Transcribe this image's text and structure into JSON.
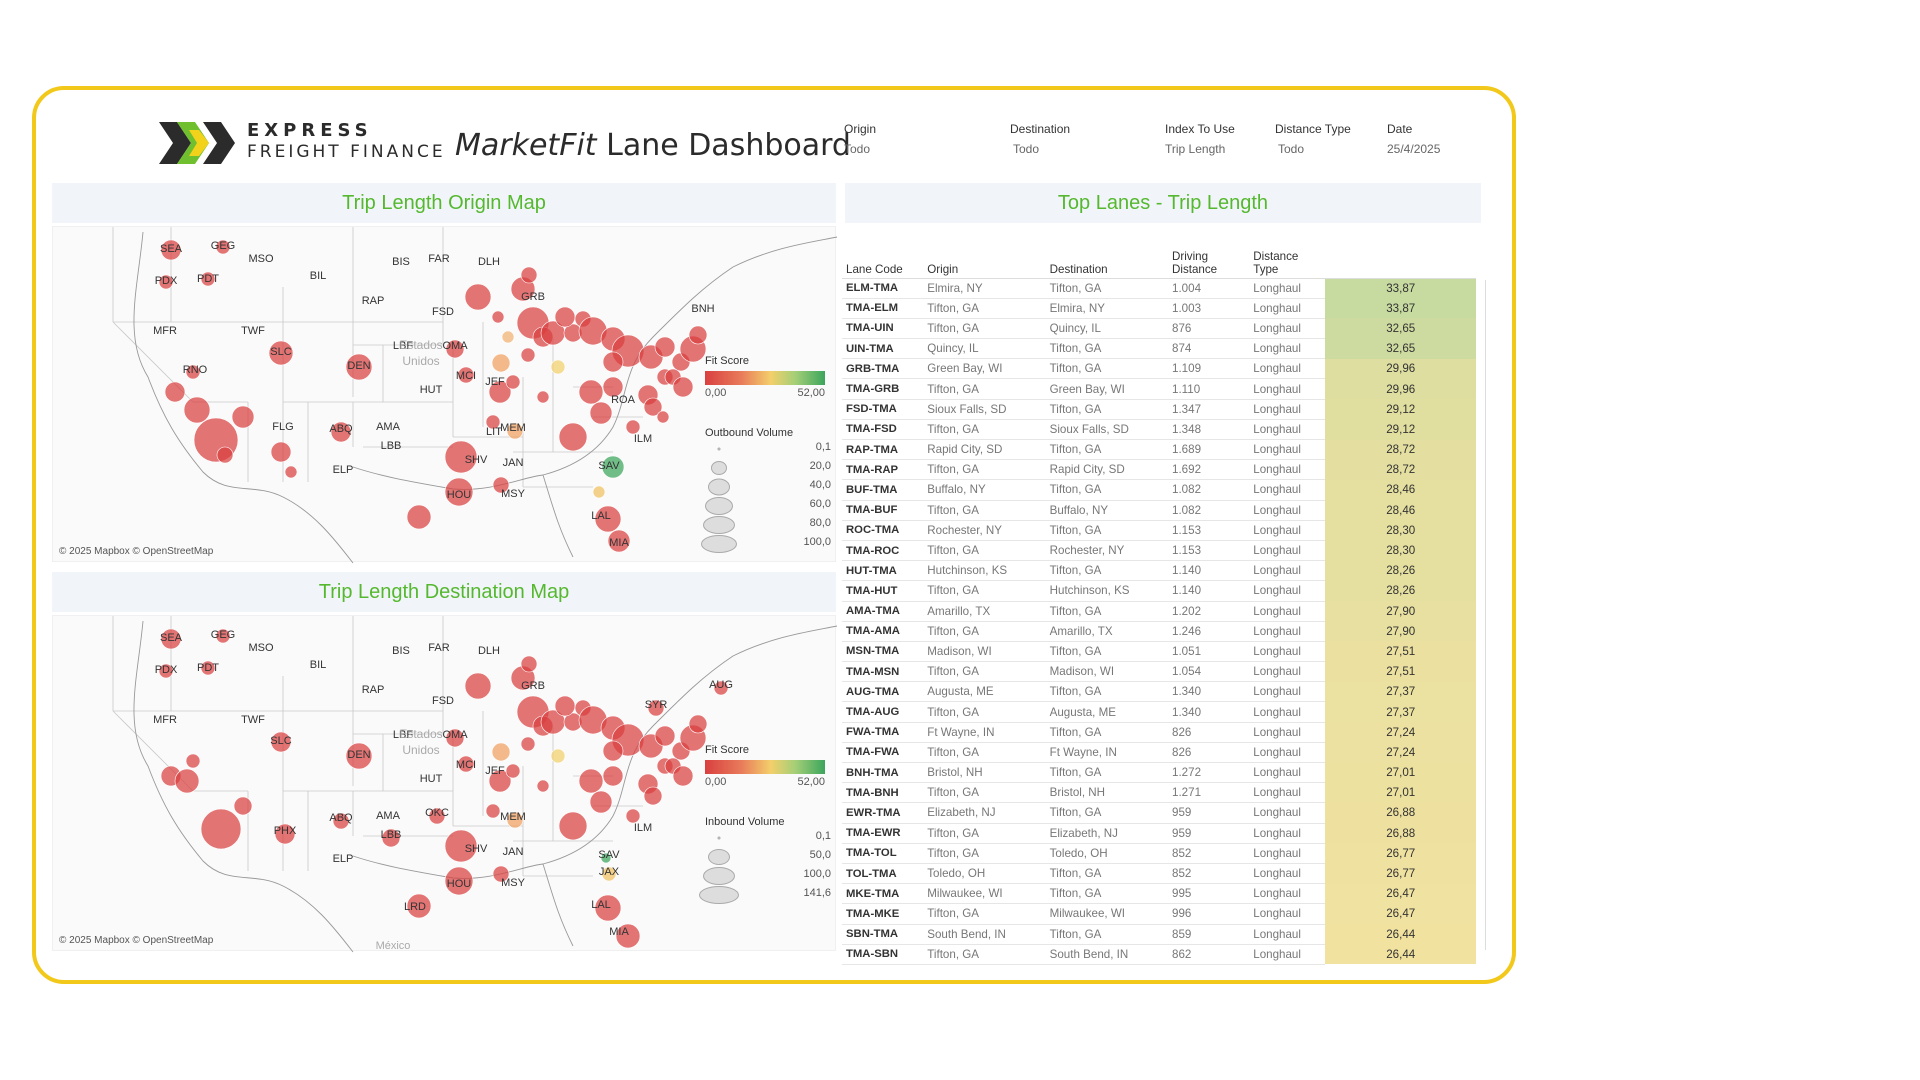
{
  "brand": {
    "line1": "EXPRESS",
    "line2": "FREIGHT FINANCE"
  },
  "title": {
    "marketfit": "MarketFit",
    "rest": " Lane Dashboard"
  },
  "filters": [
    {
      "label": "Origin",
      "value": "Todo"
    },
    {
      "label": "Destination",
      "value": "Todo"
    },
    {
      "label": "Index To Use",
      "value": "Trip Length"
    },
    {
      "label": "Distance Type",
      "value": "Todo"
    },
    {
      "label": "Date",
      "value": "25/4/2025"
    }
  ],
  "panels": {
    "origin_map_title": "Trip Length Origin Map",
    "dest_map_title": "Trip Length Destination Map",
    "table_title": "Top Lanes - Trip Length"
  },
  "maps": {
    "attribution": "© 2025 Mapbox © OpenStreetMap",
    "country_label_1": "Estados",
    "country_label_2": "Unidos",
    "mexico_label": "México",
    "origin_cities": [
      "SEA",
      "GEG",
      "MSO",
      "PDX",
      "PDT",
      "BIL",
      "BIS",
      "FAR",
      "DLH",
      "MFR",
      "TWF",
      "RAP",
      "FSD",
      "GRB",
      "BNH",
      "RNO",
      "SLC",
      "DEN",
      "LBF",
      "OMA",
      "MCI",
      "JEF",
      "HUT",
      "ROA",
      "FLG",
      "ABQ",
      "AMA",
      "LBB",
      "LIT",
      "MEM",
      "ILM",
      "ELP",
      "SHV",
      "JAN",
      "SAV",
      "HOU",
      "MSY",
      "LAL",
      "MIA"
    ],
    "dest_cities": [
      "SEA",
      "GEG",
      "MSO",
      "PDX",
      "PDT",
      "BIL",
      "BIS",
      "FAR",
      "DLH",
      "AUG",
      "MFR",
      "TWF",
      "RAP",
      "FSD",
      "GRB",
      "SYR",
      "SLC",
      "DEN",
      "LBF",
      "OMA",
      "MCI",
      "JEF",
      "HUT",
      "PHX",
      "ABQ",
      "AMA",
      "LBB",
      "OKC",
      "MEM",
      "ILM",
      "ELP",
      "SHV",
      "JAN",
      "SAV",
      "JAX",
      "HOU",
      "MSY",
      "LRD",
      "LAL",
      "MIA"
    ],
    "fit_score_legend": {
      "title": "Fit Score",
      "min": "0,00",
      "max": "52,00"
    },
    "outbound_legend": {
      "title": "Outbound Volume",
      "values": [
        "0,1",
        "20,0",
        "40,0",
        "60,0",
        "80,0",
        "100,0"
      ]
    },
    "inbound_legend": {
      "title": "Inbound Volume",
      "values": [
        "0,1",
        "50,0",
        "100,0",
        "141,6"
      ]
    }
  },
  "table": {
    "headers": {
      "code": "Lane Code",
      "origin": "Origin",
      "destination": "Destination",
      "driving": [
        "Driving",
        "Distance"
      ],
      "dtype": [
        "Distance",
        "Type"
      ]
    },
    "rows": [
      [
        "ELM-TMA",
        "Elmira, NY",
        "Tifton, GA",
        "1.004",
        "Longhaul",
        "33,87"
      ],
      [
        "TMA-ELM",
        "Tifton, GA",
        "Elmira, NY",
        "1.003",
        "Longhaul",
        "33,87"
      ],
      [
        "TMA-UIN",
        "Tifton, GA",
        "Quincy, IL",
        "876",
        "Longhaul",
        "32,65"
      ],
      [
        "UIN-TMA",
        "Quincy, IL",
        "Tifton, GA",
        "874",
        "Longhaul",
        "32,65"
      ],
      [
        "GRB-TMA",
        "Green Bay, WI",
        "Tifton, GA",
        "1.109",
        "Longhaul",
        "29,96"
      ],
      [
        "TMA-GRB",
        "Tifton, GA",
        "Green Bay, WI",
        "1.110",
        "Longhaul",
        "29,96"
      ],
      [
        "FSD-TMA",
        "Sioux Falls, SD",
        "Tifton, GA",
        "1.347",
        "Longhaul",
        "29,12"
      ],
      [
        "TMA-FSD",
        "Tifton, GA",
        "Sioux Falls, SD",
        "1.348",
        "Longhaul",
        "29,12"
      ],
      [
        "RAP-TMA",
        "Rapid City, SD",
        "Tifton, GA",
        "1.689",
        "Longhaul",
        "28,72"
      ],
      [
        "TMA-RAP",
        "Tifton, GA",
        "Rapid City, SD",
        "1.692",
        "Longhaul",
        "28,72"
      ],
      [
        "BUF-TMA",
        "Buffalo, NY",
        "Tifton, GA",
        "1.082",
        "Longhaul",
        "28,46"
      ],
      [
        "TMA-BUF",
        "Tifton, GA",
        "Buffalo, NY",
        "1.082",
        "Longhaul",
        "28,46"
      ],
      [
        "ROC-TMA",
        "Rochester, NY",
        "Tifton, GA",
        "1.153",
        "Longhaul",
        "28,30"
      ],
      [
        "TMA-ROC",
        "Tifton, GA",
        "Rochester, NY",
        "1.153",
        "Longhaul",
        "28,30"
      ],
      [
        "HUT-TMA",
        "Hutchinson, KS",
        "Tifton, GA",
        "1.140",
        "Longhaul",
        "28,26"
      ],
      [
        "TMA-HUT",
        "Tifton, GA",
        "Hutchinson, KS",
        "1.140",
        "Longhaul",
        "28,26"
      ],
      [
        "AMA-TMA",
        "Amarillo, TX",
        "Tifton, GA",
        "1.202",
        "Longhaul",
        "27,90"
      ],
      [
        "TMA-AMA",
        "Tifton, GA",
        "Amarillo, TX",
        "1.246",
        "Longhaul",
        "27,90"
      ],
      [
        "MSN-TMA",
        "Madison, WI",
        "Tifton, GA",
        "1.051",
        "Longhaul",
        "27,51"
      ],
      [
        "TMA-MSN",
        "Tifton, GA",
        "Madison, WI",
        "1.054",
        "Longhaul",
        "27,51"
      ],
      [
        "AUG-TMA",
        "Augusta, ME",
        "Tifton, GA",
        "1.340",
        "Longhaul",
        "27,37"
      ],
      [
        "TMA-AUG",
        "Tifton, GA",
        "Augusta, ME",
        "1.340",
        "Longhaul",
        "27,37"
      ],
      [
        "FWA-TMA",
        "Ft Wayne, IN",
        "Tifton, GA",
        "826",
        "Longhaul",
        "27,24"
      ],
      [
        "TMA-FWA",
        "Tifton, GA",
        "Ft Wayne, IN",
        "826",
        "Longhaul",
        "27,24"
      ],
      [
        "BNH-TMA",
        "Bristol, NH",
        "Tifton, GA",
        "1.272",
        "Longhaul",
        "27,01"
      ],
      [
        "TMA-BNH",
        "Tifton, GA",
        "Bristol, NH",
        "1.271",
        "Longhaul",
        "27,01"
      ],
      [
        "EWR-TMA",
        "Elizabeth, NJ",
        "Tifton, GA",
        "959",
        "Longhaul",
        "26,88"
      ],
      [
        "TMA-EWR",
        "Tifton, GA",
        "Elizabeth, NJ",
        "959",
        "Longhaul",
        "26,88"
      ],
      [
        "TMA-TOL",
        "Tifton, GA",
        "Toledo, OH",
        "852",
        "Longhaul",
        "26,77"
      ],
      [
        "TOL-TMA",
        "Toledo, OH",
        "Tifton, GA",
        "852",
        "Longhaul",
        "26,77"
      ],
      [
        "MKE-TMA",
        "Milwaukee, WI",
        "Tifton, GA",
        "995",
        "Longhaul",
        "26,47"
      ],
      [
        "TMA-MKE",
        "Tifton, GA",
        "Milwaukee, WI",
        "996",
        "Longhaul",
        "26,47"
      ],
      [
        "SBN-TMA",
        "South Bend, IN",
        "Tifton, GA",
        "859",
        "Longhaul",
        "26,44"
      ],
      [
        "TMA-SBN",
        "Tifton, GA",
        "South Bend, IN",
        "862",
        "Longhaul",
        "26,44"
      ]
    ]
  },
  "colors": {
    "frame": "#f2c81a",
    "title_green": "#55b82e",
    "bubble_red": "#d94040",
    "bubble_green": "#3ba55c"
  }
}
